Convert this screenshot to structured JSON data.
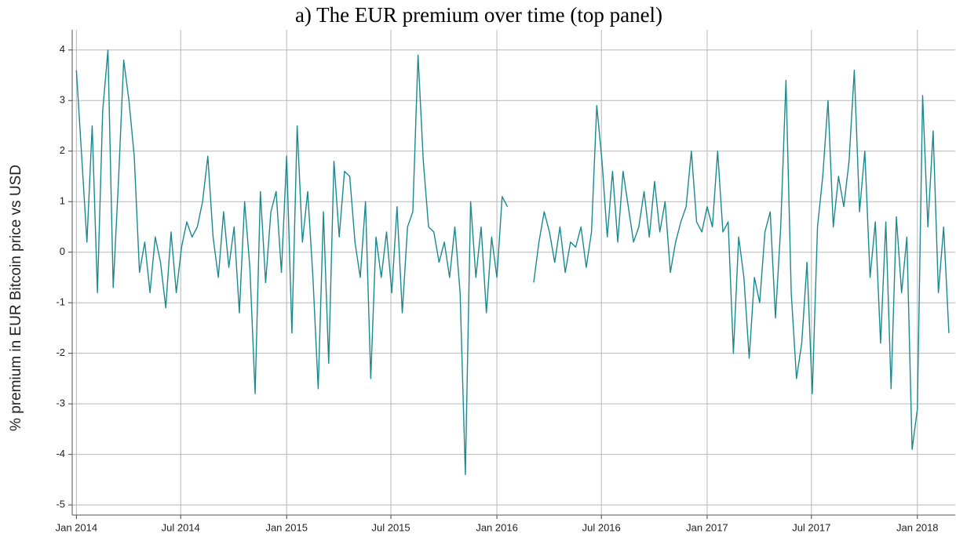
{
  "chart_data": {
    "type": "line",
    "title": "a) The EUR premium over time (top panel)",
    "y_label": "% premium in EUR Bitcoin price vs USD",
    "x": [
      2014.0,
      2014.025,
      2014.05,
      2014.075,
      2014.1,
      2014.125,
      2014.15,
      2014.175,
      2014.2,
      2014.225,
      2014.25,
      2014.275,
      2014.3,
      2014.325,
      2014.35,
      2014.375,
      2014.4,
      2014.425,
      2014.45,
      2014.475,
      2014.5,
      2014.525,
      2014.55,
      2014.575,
      2014.6,
      2014.625,
      2014.65,
      2014.675,
      2014.7,
      2014.725,
      2014.75,
      2014.775,
      2014.8,
      2014.825,
      2014.85,
      2014.875,
      2014.9,
      2014.925,
      2014.95,
      2014.975,
      2015.0,
      2015.025,
      2015.05,
      2015.075,
      2015.1,
      2015.125,
      2015.15,
      2015.175,
      2015.2,
      2015.225,
      2015.25,
      2015.275,
      2015.3,
      2015.325,
      2015.35,
      2015.375,
      2015.4,
      2015.425,
      2015.45,
      2015.475,
      2015.5,
      2015.525,
      2015.55,
      2015.575,
      2015.6,
      2015.625,
      2015.65,
      2015.675,
      2015.7,
      2015.725,
      2015.75,
      2015.775,
      2015.8,
      2015.825,
      2015.85,
      2015.875,
      2015.9,
      2015.925,
      2015.95,
      2015.975,
      2016.0,
      2016.025,
      2016.05,
      2016.075,
      2016.1,
      2016.125,
      2016.15,
      2016.175,
      2016.2,
      2016.225,
      2016.25,
      2016.275,
      2016.3,
      2016.325,
      2016.35,
      2016.375,
      2016.4,
      2016.425,
      2016.45,
      2016.475,
      2016.5,
      2016.525,
      2016.55,
      2016.575,
      2016.6,
      2016.625,
      2016.65,
      2016.675,
      2016.7,
      2016.725,
      2016.75,
      2016.775,
      2016.8,
      2016.825,
      2016.85,
      2016.875,
      2016.9,
      2016.925,
      2016.95,
      2016.975,
      2017.0,
      2017.025,
      2017.05,
      2017.075,
      2017.1,
      2017.125,
      2017.15,
      2017.175,
      2017.2,
      2017.225,
      2017.25,
      2017.275,
      2017.3,
      2017.325,
      2017.35,
      2017.375,
      2017.4,
      2017.425,
      2017.45,
      2017.475,
      2017.5,
      2017.525,
      2017.55,
      2017.575,
      2017.6,
      2017.625,
      2017.65,
      2017.675,
      2017.7,
      2017.725,
      2017.75,
      2017.775,
      2017.8,
      2017.825,
      2017.85,
      2017.875,
      2017.9,
      2017.925,
      2017.95,
      2017.975,
      2018.0,
      2018.025,
      2018.05,
      2018.075,
      2018.1,
      2018.125,
      2018.15
    ],
    "series": [
      {
        "name": "EUR premium",
        "color": "#1a8a8e",
        "values": [
          3.6,
          1.9,
          0.2,
          2.5,
          -0.8,
          2.8,
          4.0,
          -0.7,
          1.4,
          3.8,
          3.0,
          1.9,
          -0.4,
          0.2,
          -0.8,
          0.3,
          -0.2,
          -1.1,
          0.4,
          -0.8,
          0.1,
          0.6,
          0.3,
          0.5,
          1.0,
          1.9,
          0.3,
          -0.5,
          0.8,
          -0.3,
          0.5,
          -1.2,
          1.0,
          -0.3,
          -2.8,
          1.2,
          -0.6,
          0.8,
          1.2,
          -0.4,
          1.9,
          -1.6,
          2.5,
          0.2,
          1.2,
          -0.5,
          -2.7,
          0.8,
          -2.2,
          1.8,
          0.3,
          1.6,
          1.5,
          0.2,
          -0.5,
          1.0,
          -2.5,
          0.3,
          -0.5,
          0.4,
          -0.8,
          0.9,
          -1.2,
          0.5,
          0.8,
          3.9,
          1.8,
          0.5,
          0.4,
          -0.2,
          0.2,
          -0.5,
          0.5,
          -0.8,
          -4.4,
          1.0,
          -0.5,
          0.5,
          -1.2,
          0.3,
          -0.5,
          1.1,
          0.9,
          null,
          null,
          null,
          null,
          -0.6,
          0.2,
          0.8,
          0.4,
          -0.2,
          0.5,
          -0.4,
          0.2,
          0.1,
          0.5,
          -0.3,
          0.4,
          2.9,
          1.8,
          0.3,
          1.6,
          0.2,
          1.6,
          0.9,
          0.2,
          0.5,
          1.2,
          0.3,
          1.4,
          0.4,
          1.0,
          -0.4,
          0.2,
          0.6,
          0.9,
          2.0,
          0.6,
          0.4,
          0.9,
          0.5,
          2.0,
          0.4,
          0.6,
          -2.0,
          0.3,
          -0.5,
          -2.1,
          -0.5,
          -1.0,
          0.4,
          0.8,
          -1.3,
          0.5,
          3.4,
          -0.8,
          -2.5,
          -1.8,
          -0.2,
          -2.8,
          0.5,
          1.5,
          3.0,
          0.5,
          1.5,
          0.9,
          1.8,
          3.6,
          0.8,
          2.0,
          -0.5,
          0.6,
          -1.8,
          0.6,
          -2.7,
          0.7,
          -0.8,
          0.3,
          -3.9,
          -3.1,
          3.1,
          0.5,
          2.4,
          -0.8,
          0.5,
          -1.6
        ]
      }
    ],
    "xlim": [
      2013.98,
      2018.18
    ],
    "xticks": [
      {
        "value": 2014.0,
        "label": "Jan 2014"
      },
      {
        "value": 2014.496,
        "label": "Jul 2014"
      },
      {
        "value": 2015.0,
        "label": "Jan 2015"
      },
      {
        "value": 2015.496,
        "label": "Jul 2015"
      },
      {
        "value": 2016.0,
        "label": "Jan 2016"
      },
      {
        "value": 2016.497,
        "label": "Jul 2016"
      },
      {
        "value": 2017.0,
        "label": "Jan 2017"
      },
      {
        "value": 2017.496,
        "label": "Jul 2017"
      },
      {
        "value": 2018.0,
        "label": "Jan 2018"
      }
    ],
    "ylim": [
      -5.2,
      4.4
    ],
    "yticks": [
      4,
      3,
      2,
      1,
      0,
      -1,
      -2,
      -3,
      -4,
      -5
    ],
    "grid": true
  }
}
